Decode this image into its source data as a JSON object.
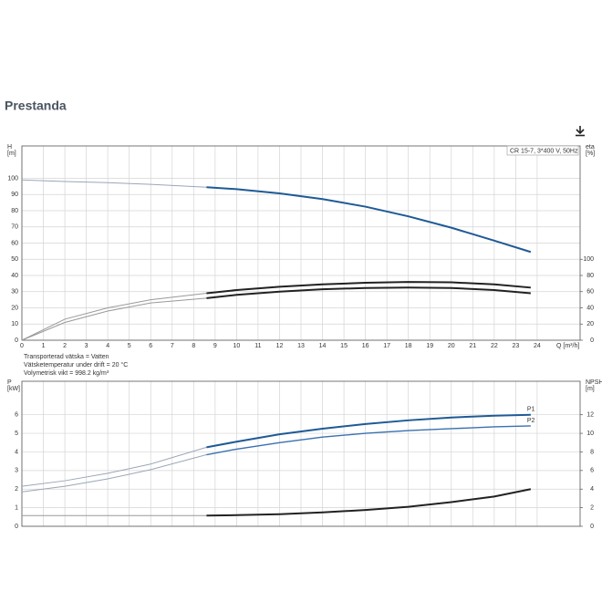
{
  "title": "Prestanda",
  "notes": [
    "Transporterad vätska = Vatten",
    "Vätsketemperatur under drift = 20 °C",
    "Volymetrisk vikt = 998.2 kg/m³"
  ],
  "chart_data": [
    {
      "type": "line",
      "subtitle": "CR 15-7, 3*400 V, 50Hz",
      "ylabel": [
        "H",
        "[m]"
      ],
      "y2label": [
        "eta",
        "[%]"
      ],
      "xlabel": "Q [m³/h]",
      "xlim": [
        0,
        26
      ],
      "xticks": [
        0,
        1,
        2,
        3,
        4,
        5,
        6,
        7,
        8,
        9,
        10,
        11,
        12,
        13,
        14,
        15,
        16,
        17,
        18,
        19,
        20,
        21,
        22,
        23,
        24
      ],
      "xtick_labels": true,
      "ylim": [
        0,
        120
      ],
      "yticks": [
        0,
        10,
        20,
        30,
        40,
        50,
        60,
        70,
        80,
        90,
        100
      ],
      "y2lim": [
        0,
        240
      ],
      "y2ticks": [
        0,
        20,
        40,
        60,
        80,
        100
      ],
      "grid": true,
      "series": [
        {
          "color": "#9aa6b8",
          "width": 1,
          "x": [
            0,
            2,
            4,
            6,
            8.6
          ],
          "values": [
            99,
            98,
            97.3,
            96.3,
            94.5
          ]
        },
        {
          "color": "#1f5a96",
          "width": 2,
          "x": [
            8.6,
            10,
            12,
            14,
            16,
            18,
            20,
            22,
            23.7
          ],
          "values": [
            94.5,
            93.3,
            90.7,
            87.2,
            82.5,
            76.5,
            69.5,
            61.5,
            54.5
          ]
        },
        {
          "color": "#999999",
          "width": 1,
          "axis": "y2",
          "x": [
            0,
            2,
            4,
            6,
            8.6
          ],
          "values": [
            0,
            26,
            40,
            50,
            58
          ]
        },
        {
          "color": "#222222",
          "width": 2,
          "axis": "y2",
          "x": [
            8.6,
            10,
            12,
            14,
            16,
            18,
            20,
            22,
            23.7
          ],
          "values": [
            58,
            62,
            66,
            69,
            71,
            72,
            71.5,
            69,
            65
          ]
        },
        {
          "color": "#999999",
          "width": 1,
          "axis": "y2",
          "x": [
            0,
            2,
            4,
            6,
            8.6
          ],
          "values": [
            0,
            22,
            36,
            46,
            52
          ]
        },
        {
          "color": "#222222",
          "width": 2,
          "axis": "y2",
          "x": [
            8.6,
            10,
            12,
            14,
            16,
            18,
            20,
            22,
            23.7
          ],
          "values": [
            52,
            56,
            60,
            63,
            64.5,
            65,
            64.5,
            62,
            58
          ]
        }
      ]
    },
    {
      "type": "line",
      "ylabel": [
        "P",
        "[kW]"
      ],
      "y2label": [
        "NPSH",
        "[m]"
      ],
      "xlim": [
        0,
        26
      ],
      "xticks": [
        0,
        1,
        2,
        3,
        4,
        5,
        6,
        7,
        8,
        9,
        10,
        11,
        12,
        13,
        14,
        15,
        16,
        17,
        18,
        19,
        20,
        21,
        22,
        23,
        24
      ],
      "xtick_labels": false,
      "ylim": [
        0,
        7.8
      ],
      "yticks": [
        0,
        1,
        2,
        3,
        4,
        5,
        6
      ],
      "y2lim": [
        0,
        15.6
      ],
      "y2ticks": [
        0,
        2,
        4,
        6,
        8,
        10,
        12
      ],
      "grid": true,
      "series": [
        {
          "color": "#9aa6b8",
          "width": 1,
          "x": [
            0,
            2,
            4,
            6,
            8.6
          ],
          "values": [
            2.15,
            2.45,
            2.85,
            3.35,
            4.25
          ]
        },
        {
          "name": "P1",
          "color": "#1f5a96",
          "width": 2,
          "x": [
            8.6,
            10,
            12,
            14,
            16,
            18,
            20,
            22,
            23.7
          ],
          "values": [
            4.25,
            4.55,
            4.95,
            5.25,
            5.5,
            5.7,
            5.85,
            5.95,
            6.0
          ]
        },
        {
          "color": "#9aa6b8",
          "width": 1,
          "x": [
            0,
            2,
            4,
            6,
            8.6
          ],
          "values": [
            1.85,
            2.15,
            2.55,
            3.05,
            3.85
          ]
        },
        {
          "name": "P2",
          "color": "#3a70b0",
          "width": 1.4,
          "x": [
            8.6,
            10,
            12,
            14,
            16,
            18,
            20,
            22,
            23.7
          ],
          "values": [
            3.85,
            4.15,
            4.5,
            4.8,
            5.0,
            5.15,
            5.25,
            5.35,
            5.4
          ]
        },
        {
          "color": "#999999",
          "width": 1,
          "axis": "y2",
          "x": [
            0,
            2,
            4,
            6,
            8.6
          ],
          "values": [
            1.15,
            1.15,
            1.15,
            1.15,
            1.15
          ]
        },
        {
          "color": "#222222",
          "width": 2,
          "axis": "y2",
          "x": [
            8.6,
            10,
            12,
            14,
            16,
            18,
            20,
            22,
            23.7
          ],
          "values": [
            1.15,
            1.2,
            1.3,
            1.5,
            1.75,
            2.1,
            2.6,
            3.2,
            4.0
          ]
        }
      ]
    }
  ]
}
